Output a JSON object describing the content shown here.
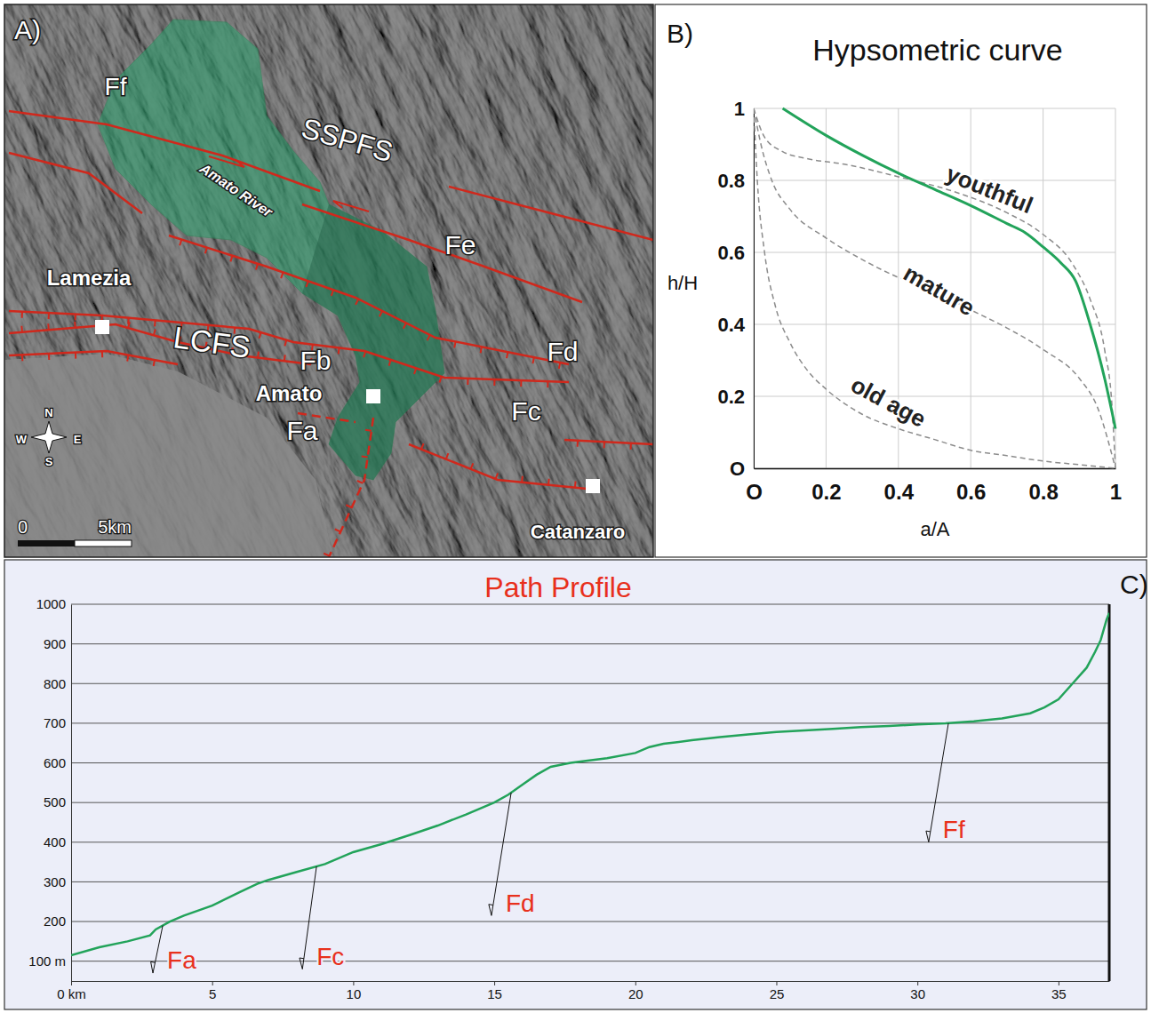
{
  "chart_data": [
    {
      "type": "line",
      "panel": "B)",
      "title": "Hypsometric curve",
      "x_label": "a/A",
      "y_label": "h/H",
      "xlim": [
        0,
        1
      ],
      "ylim": [
        0,
        1
      ],
      "xticks": [
        {
          "value": 0,
          "label": "O"
        },
        0.2,
        0.4,
        0.6,
        0.8,
        1
      ],
      "yticks": [
        {
          "value": 0,
          "label": "O"
        },
        0.2,
        0.4,
        0.6,
        0.8,
        1
      ],
      "grid": true,
      "series": [
        {
          "color": "#22a35a",
          "line_style": "solid",
          "x": [
            0.08,
            0.2,
            0.3,
            0.4,
            0.5,
            0.6,
            0.7,
            0.75,
            0.8,
            0.85,
            0.89,
            0.93,
            0.97,
            1
          ],
          "values": [
            1,
            0.925,
            0.87,
            0.82,
            0.775,
            0.73,
            0.68,
            0.655,
            0.615,
            0.57,
            0.52,
            0.4,
            0.25,
            0.11
          ]
        },
        {
          "name": "youthful",
          "color": "#8c8c8c",
          "line_style": "dashed",
          "x": [
            0,
            0.03,
            0.08,
            0.15,
            0.25,
            0.4,
            0.55,
            0.7,
            0.8,
            0.88,
            0.93,
            0.97,
            0.99,
            1
          ],
          "values": [
            1,
            0.92,
            0.88,
            0.86,
            0.845,
            0.81,
            0.77,
            0.71,
            0.65,
            0.57,
            0.47,
            0.33,
            0.18,
            0
          ]
        },
        {
          "name": "mature",
          "color": "#8c8c8c",
          "line_style": "dashed",
          "x": [
            0,
            0.02,
            0.05,
            0.1,
            0.2,
            0.3,
            0.4,
            0.5,
            0.6,
            0.7,
            0.8,
            0.9,
            0.95,
            1
          ],
          "values": [
            1,
            0.9,
            0.8,
            0.72,
            0.64,
            0.58,
            0.53,
            0.49,
            0.44,
            0.39,
            0.33,
            0.25,
            0.17,
            0
          ]
        },
        {
          "name": "old age",
          "color": "#8c8c8c",
          "line_style": "dashed",
          "x": [
            0,
            0.01,
            0.03,
            0.06,
            0.1,
            0.15,
            0.2,
            0.3,
            0.4,
            0.5,
            0.6,
            0.7,
            0.8,
            0.9,
            1
          ],
          "values": [
            1,
            0.8,
            0.6,
            0.45,
            0.35,
            0.27,
            0.22,
            0.15,
            0.11,
            0.08,
            0.05,
            0.035,
            0.02,
            0.01,
            0
          ]
        }
      ]
    },
    {
      "type": "line",
      "panel": "C)",
      "title": "Path Profile",
      "xlim": [
        0,
        36.8
      ],
      "ylim": [
        50,
        1000
      ],
      "xticks": [
        {
          "value": 0,
          "label": "0 km"
        },
        5,
        10,
        15,
        20,
        25,
        30,
        35
      ],
      "yticks": [
        {
          "value": 100,
          "label": "100 m"
        },
        200,
        300,
        400,
        500,
        600,
        700,
        800,
        900,
        1000
      ],
      "grid": true,
      "series": [
        {
          "color": "#22a35a",
          "line_style": "solid",
          "x": [
            0,
            1,
            2,
            2.8,
            3,
            3.5,
            4,
            5,
            6,
            6.6,
            7,
            8,
            9,
            10,
            11,
            12,
            13,
            14,
            15,
            15.5,
            16,
            16.5,
            17,
            17.7,
            18,
            19,
            20,
            20.5,
            21,
            22,
            23,
            24,
            25,
            26,
            27,
            28,
            29,
            30,
            31,
            32,
            33,
            34,
            34.5,
            35,
            35.5,
            36,
            36.3,
            36.5,
            36.7,
            36.8
          ],
          "values": [
            115,
            135,
            150,
            165,
            180,
            200,
            215,
            240,
            275,
            295,
            305,
            325,
            345,
            375,
            395,
            418,
            442,
            470,
            500,
            520,
            545,
            570,
            590,
            600,
            603,
            612,
            625,
            640,
            648,
            657,
            665,
            672,
            678,
            682,
            686,
            690,
            693,
            697,
            700,
            705,
            712,
            725,
            740,
            760,
            800,
            840,
            880,
            910,
            960,
            978
          ]
        }
      ],
      "annotations": [
        {
          "text": "Fa",
          "color": "#e8301c",
          "x": 3.25,
          "y": 190,
          "x_end": 2.9,
          "y_end": 70
        },
        {
          "text": "Fc",
          "color": "#e8301c",
          "x": 8.7,
          "y": 339,
          "x_end": 8.2,
          "y_end": 80
        },
        {
          "text": "Fd",
          "color": "#e8301c",
          "x": 15.6,
          "y": 525,
          "x_end": 14.9,
          "y_end": 215
        },
        {
          "text": "Ff",
          "color": "#e8301c",
          "x": 31.1,
          "y": 700,
          "x_end": 30.4,
          "y_end": 400
        }
      ]
    }
  ],
  "map": {
    "panel": "A)",
    "labels": [
      "Ff",
      "SSPFS",
      "Amato River",
      "Fe",
      "Lamezia",
      "LCFS",
      "Fb",
      "Amato",
      "Fa",
      "Fd",
      "Fc",
      "Catanzaro"
    ],
    "compass": [
      "N",
      "S",
      "W",
      "E"
    ],
    "scale_bar": {
      "ticks": [
        0,
        {
          "value": 5,
          "label": "5km"
        }
      ]
    }
  }
}
